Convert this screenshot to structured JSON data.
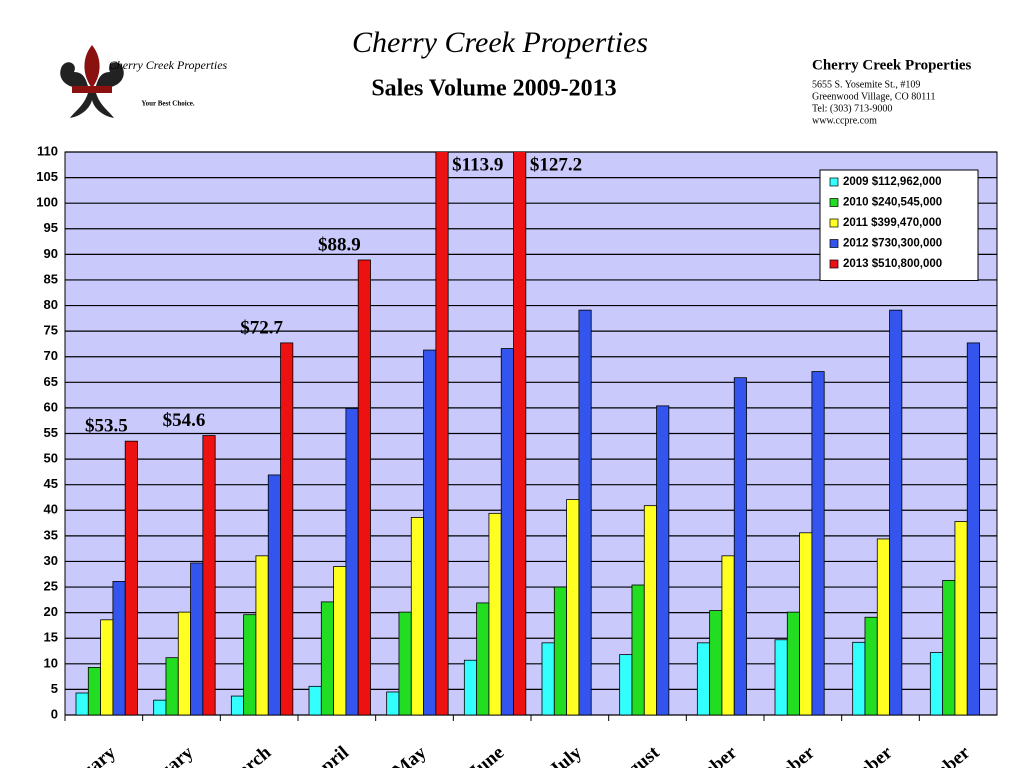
{
  "header": {
    "logo_name": "Cherry Creek Properties",
    "logo_tagline": "Your Best Choice.",
    "script_title": "Cherry Creek Properties",
    "address": {
      "name": "Cherry Creek Properties",
      "line1": "5655 S. Yosemite St., #109",
      "line2": "Greenwood Village, CO 80111",
      "line3": "Tel: (303) 713-9000",
      "line4": "www.ccpre.com"
    }
  },
  "chart_data": {
    "type": "bar",
    "title": "Sales Volume 2009-2013",
    "categories": [
      "uary",
      "ruary",
      "arch",
      "pril",
      "May",
      "June",
      "July",
      "gust",
      "mber",
      "ober",
      "mber",
      "mber"
    ],
    "series": [
      {
        "name": "2009 $112,962,000",
        "color": "#33ffff",
        "values": [
          4.3,
          2.9,
          3.7,
          5.6,
          4.5,
          10.7,
          14.1,
          11.8,
          14.1,
          14.7,
          14.2,
          12.2
        ]
      },
      {
        "name": "2010 $240,545,000",
        "color": "#22dd22",
        "values": [
          9.3,
          11.2,
          19.6,
          22.1,
          20.1,
          21.9,
          25.0,
          25.4,
          20.4,
          20.1,
          19.1,
          26.3
        ]
      },
      {
        "name": "2011 $399,470,000",
        "color": "#ffff22",
        "values": [
          18.6,
          20.1,
          31.1,
          29.0,
          38.6,
          39.4,
          42.1,
          40.9,
          31.1,
          35.6,
          34.4,
          37.8
        ]
      },
      {
        "name": "2012 $730,300,000",
        "color": "#3355ee",
        "values": [
          26.1,
          29.7,
          46.9,
          59.9,
          71.3,
          71.6,
          79.1,
          60.4,
          65.9,
          67.1,
          79.1,
          72.7
        ]
      },
      {
        "name": "2013 $510,800,000",
        "color": "#ee1111",
        "values": [
          53.5,
          54.6,
          72.7,
          88.9,
          113.9,
          127.2,
          null,
          null,
          null,
          null,
          null,
          null
        ],
        "value_labels": [
          "$53.5",
          "$54.6",
          "$72.7",
          "$88.9",
          "$113.9",
          "$127.2",
          null,
          null,
          null,
          null,
          null,
          null
        ]
      }
    ],
    "ylim": [
      0,
      110
    ],
    "yticks": [
      0,
      5,
      10,
      15,
      20,
      25,
      30,
      35,
      40,
      45,
      50,
      55,
      60,
      65,
      70,
      75,
      80,
      85,
      90,
      95,
      100,
      105,
      110
    ],
    "grid": true,
    "legend": "top-right"
  }
}
